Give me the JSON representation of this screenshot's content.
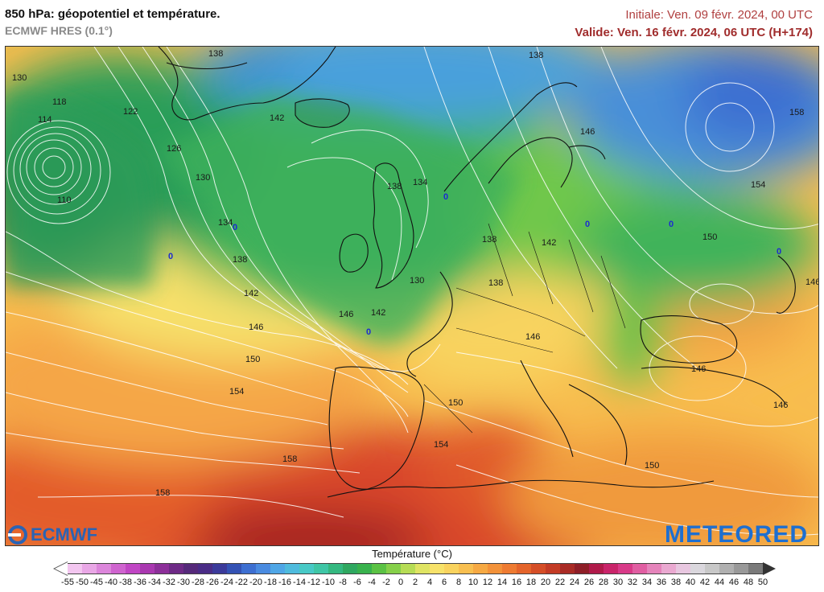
{
  "header": {
    "title": "850 hPa: géopotentiel et température.",
    "model": "ECMWF HRES (0.1°)",
    "init": "Initiale: Ven. 09 févr. 2024, 00 UTC",
    "valid": "Valide: Ven. 16 févr. 2024, 06 UTC (H+174)"
  },
  "map": {
    "contour_labels": [
      "138",
      "130",
      "118",
      "114",
      "122",
      "110",
      "126",
      "130",
      "134",
      "138",
      "142",
      "146",
      "150",
      "154",
      "158",
      "142",
      "138",
      "134",
      "138",
      "130",
      "146",
      "142",
      "138",
      "142",
      "138",
      "146",
      "146",
      "146",
      "150",
      "154",
      "150",
      "146",
      "158",
      "154",
      "150",
      "146",
      "158",
      "0",
      "0",
      "0",
      "0",
      "0",
      "0",
      "0"
    ],
    "label_color": "#1a1a1a",
    "zero_label_color": "#1c2bd0",
    "contour_color": "#ffffff",
    "coast_color": "#111111"
  },
  "logos": {
    "left": "ECMWF",
    "right": "METEORED"
  },
  "legend": {
    "title": "Température (°C)",
    "ticks": [
      "-55",
      "-50",
      "-45",
      "-40",
      "-38",
      "-36",
      "-34",
      "-32",
      "-30",
      "-28",
      "-26",
      "-24",
      "-22",
      "-20",
      "-18",
      "-16",
      "-14",
      "-12",
      "-10",
      "-8",
      "-6",
      "-4",
      "-2",
      "0",
      "2",
      "4",
      "6",
      "8",
      "10",
      "12",
      "14",
      "16",
      "18",
      "20",
      "22",
      "24",
      "26",
      "28",
      "30",
      "32",
      "34",
      "36",
      "38",
      "40",
      "42",
      "44",
      "46",
      "48",
      "50"
    ],
    "colors": [
      "#f3c6f0",
      "#e9a7e6",
      "#dc86db",
      "#cf64cf",
      "#c046c4",
      "#a938b0",
      "#8c2f99",
      "#6e2a86",
      "#55297a",
      "#4a2c86",
      "#3b3a9a",
      "#3452b4",
      "#3d6fd1",
      "#4a8be0",
      "#4fa6e6",
      "#4fbbdd",
      "#48c9c6",
      "#3fc6a6",
      "#34b880",
      "#2fa860",
      "#39b24d",
      "#5bc244",
      "#86d04a",
      "#b6dc55",
      "#dfe463",
      "#f7e26a",
      "#f9d35e",
      "#f8bf50",
      "#f6a943",
      "#f3923a",
      "#ee7b32",
      "#e4642b",
      "#d54e27",
      "#c33b25",
      "#a92b25",
      "#8e1e27",
      "#b01a4a",
      "#c9246a",
      "#d83a88",
      "#e05ea2",
      "#e584bb",
      "#eaa9d1",
      "#e8c7e0",
      "#dad7dd",
      "#c8c8c8",
      "#b0b0b0",
      "#999999",
      "#7a7a7a"
    ]
  }
}
